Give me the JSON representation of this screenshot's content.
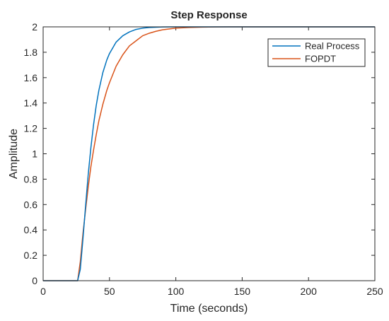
{
  "chart_data": {
    "type": "line",
    "title": "Step Response",
    "xlabel": "Time (seconds)",
    "ylabel": "Amplitude",
    "xlim": [
      0,
      250
    ],
    "ylim": [
      0,
      2
    ],
    "xticks": [
      0,
      50,
      100,
      150,
      200,
      250
    ],
    "yticks": [
      0,
      0.2,
      0.4,
      0.6,
      0.8,
      1,
      1.2,
      1.4,
      1.6,
      1.8,
      2
    ],
    "xtick_labels": [
      "0",
      "50",
      "100",
      "150",
      "200",
      "250"
    ],
    "ytick_labels": [
      "0",
      "0.2",
      "0.4",
      "0.6",
      "0.8",
      "1",
      "1.2",
      "1.4",
      "1.6",
      "1.8",
      "2"
    ],
    "grid": false,
    "legend_position": "top-right",
    "steady_state_reference": {
      "value": 2,
      "style": "dotted",
      "color": "#000000"
    },
    "series": [
      {
        "name": "Real Process",
        "color": "#0072BD",
        "x": [
          0,
          26,
          28,
          30,
          32,
          34,
          36,
          38,
          40,
          42,
          45,
          48,
          50,
          55,
          60,
          65,
          70,
          75,
          80,
          90,
          100,
          110,
          120,
          130,
          250
        ],
        "y": [
          0,
          0,
          0.09,
          0.33,
          0.59,
          0.84,
          1.05,
          1.23,
          1.38,
          1.5,
          1.64,
          1.74,
          1.79,
          1.88,
          1.93,
          1.96,
          1.98,
          1.99,
          1.995,
          1.999,
          2.0,
          2.0,
          2.0,
          2.0,
          2.0
        ]
      },
      {
        "name": "FOPDT",
        "color": "#D95319",
        "x": [
          0,
          26,
          28,
          30,
          32,
          34,
          36,
          38,
          40,
          42,
          45,
          48,
          50,
          55,
          60,
          65,
          70,
          75,
          80,
          85,
          90,
          100,
          110,
          120,
          130,
          140,
          250
        ],
        "y": [
          0,
          0,
          0.15,
          0.37,
          0.56,
          0.74,
          0.9,
          1.03,
          1.15,
          1.26,
          1.39,
          1.5,
          1.56,
          1.69,
          1.78,
          1.85,
          1.89,
          1.93,
          1.95,
          1.965,
          1.977,
          1.99,
          1.995,
          1.998,
          1.999,
          2.0,
          2.0
        ]
      }
    ]
  }
}
